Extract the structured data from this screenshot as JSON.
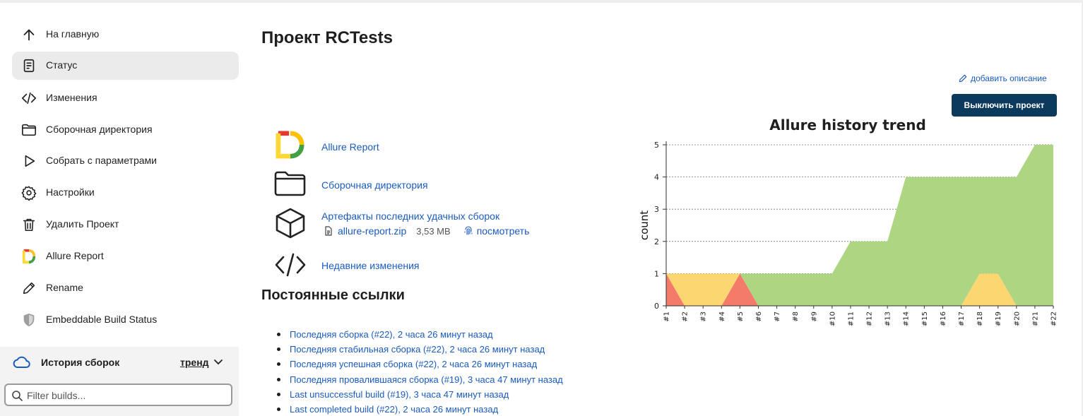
{
  "sidebar": {
    "items": [
      {
        "label": "На главную",
        "icon": "arrow-up-icon",
        "active": false
      },
      {
        "label": "Статус",
        "icon": "document-icon",
        "active": true
      },
      {
        "label": "Изменения",
        "icon": "code-icon",
        "active": false
      },
      {
        "label": "Сборочная директория",
        "icon": "folder-icon",
        "active": false
      },
      {
        "label": "Собрать с параметрами",
        "icon": "play-icon",
        "active": false
      },
      {
        "label": "Настройки",
        "icon": "gear-icon",
        "active": false
      },
      {
        "label": "Удалить Проект",
        "icon": "trash-icon",
        "active": false
      },
      {
        "label": "Allure Report",
        "icon": "allure-icon",
        "active": false
      },
      {
        "label": "Rename",
        "icon": "pencil-icon",
        "active": false
      },
      {
        "label": "Embeddable Build Status",
        "icon": "shield-icon",
        "active": false
      }
    ]
  },
  "history": {
    "title": "История сборок",
    "trend_label": "тренд",
    "filter_placeholder": "Filter builds..."
  },
  "main": {
    "title": "Проект RCTests",
    "add_description": "добавить описание",
    "disable_button": "Выключить проект",
    "links": {
      "allure": "Allure Report",
      "workspace": "Сборочная директория",
      "artifacts": "Артефакты последних удачных сборок",
      "changes": "Недавние изменения"
    },
    "artifact": {
      "file": "allure-report.zip",
      "size": "3,53 MB",
      "view": "посмотреть"
    },
    "permalinks_title": "Постоянные ссылки",
    "permalinks": [
      "Последняя сборка (#22), 2 часа 26 минут назад",
      "Последняя стабильная сборка (#22), 2 часа 26 минут назад",
      "Последняя успешная сборка (#22), 2 часа 26 минут назад",
      "Последняя провалившаяся сборка (#19), 3 часа 47 минут назад",
      "Last unsuccessful build (#19), 3 часа 47 минут назад",
      "Last completed build (#22), 2 часа 26 минут назад"
    ]
  },
  "chart_data": {
    "type": "area",
    "title": "Allure history trend",
    "xlabel": "",
    "ylabel": "count",
    "ylim": [
      0,
      5
    ],
    "yticks": [
      0,
      1,
      2,
      3,
      4,
      5
    ],
    "grid": true,
    "categories": [
      "#1",
      "#2",
      "#3",
      "#4",
      "#5",
      "#6",
      "#7",
      "#8",
      "#9",
      "#10",
      "#11",
      "#12",
      "#13",
      "#14",
      "#15",
      "#16",
      "#17",
      "#18",
      "#19",
      "#20",
      "#21",
      "#22"
    ],
    "series": [
      {
        "color": "#f47a6a",
        "values": [
          1,
          0,
          0,
          0,
          1,
          0,
          0,
          0,
          0,
          0,
          0,
          0,
          0,
          0,
          0,
          0,
          0,
          0,
          0,
          0,
          0,
          0
        ]
      },
      {
        "color": "#fbd671",
        "values": [
          0,
          1,
          1,
          1,
          0,
          0,
          0,
          0,
          0,
          0,
          0,
          0,
          0,
          0,
          0,
          0,
          0,
          1,
          1,
          0,
          0,
          0
        ]
      },
      {
        "color": "#aed581",
        "values": [
          0,
          0,
          0,
          0,
          0,
          1,
          1,
          1,
          1,
          1,
          2,
          2,
          2,
          4,
          4,
          4,
          4,
          3,
          3,
          4,
          5,
          5
        ]
      }
    ]
  }
}
